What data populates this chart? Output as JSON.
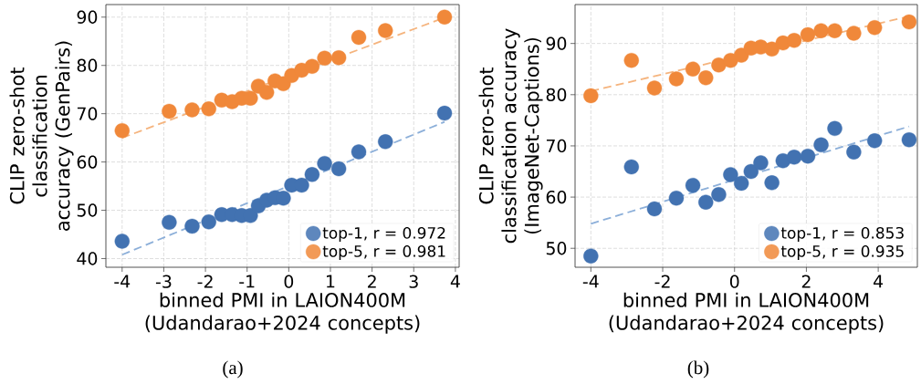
{
  "chart_data": [
    {
      "type": "scatter",
      "xlabel": "binned PMI in LAION400M (Udandarao+2024 concepts)",
      "ylabel": "CLIP zero-shot classification accuracy (GenPairs)",
      "xlim": [
        -4.39,
        4.09
      ],
      "ylim": [
        38.2,
        92.6
      ],
      "xticks": [
        -4,
        -3,
        -2,
        -1,
        0,
        1,
        2,
        3,
        4
      ],
      "yticks": [
        40,
        50,
        60,
        70,
        80,
        90
      ],
      "grid": true,
      "legend": "bottom right",
      "annotations": [
        "(a)"
      ],
      "series": [
        {
          "name": "top-1, r = 0.972",
          "marker": "circle",
          "color": "#4272b1",
          "x": [
            -4,
            -2.87,
            -2.32,
            -1.92,
            -1.61,
            -1.36,
            -1.13,
            -0.92,
            -0.73,
            -0.53,
            -0.33,
            -0.13,
            0.07,
            0.31,
            0.56,
            0.86,
            1.2,
            1.68,
            2.32,
            3.74
          ],
          "values": [
            43.6,
            47.5,
            46.7,
            47.6,
            49.1,
            49.1,
            48.9,
            48.9,
            50.9,
            52.1,
            52.6,
            52.5,
            55.2,
            55.2,
            57.4,
            59.7,
            58.6,
            62.1,
            64.2,
            70.1
          ]
        },
        {
          "name": "top-5, r = 0.981",
          "marker": "circle",
          "color": "#f0883a",
          "x": [
            -4,
            -2.87,
            -2.32,
            -1.92,
            -1.61,
            -1.36,
            -1.13,
            -0.92,
            -0.73,
            -0.53,
            -0.33,
            -0.13,
            0.07,
            0.31,
            0.56,
            0.86,
            1.2,
            1.68,
            2.32,
            3.74
          ],
          "values": [
            66.5,
            70.5,
            70.8,
            71.0,
            72.8,
            72.5,
            73.2,
            73.2,
            75.7,
            74.4,
            76.8,
            76.2,
            77.9,
            79.0,
            79.8,
            81.5,
            81.6,
            85.8,
            87.2,
            90.0
          ]
        },
        {
          "type": "line",
          "marker": "none",
          "line_style": "dashed",
          "color": "#8cafd9",
          "x": [
            -4,
            3.74
          ],
          "values": [
            40.8,
            68.3
          ]
        },
        {
          "type": "line",
          "marker": "none",
          "line_style": "dashed",
          "color": "#f5b47e",
          "x": [
            -4,
            3.74
          ],
          "values": [
            65.0,
            89.9
          ]
        }
      ]
    },
    {
      "type": "scatter",
      "xlabel": "binned PMI in LAION400M (Udandarao+2024 concepts)",
      "ylabel": "CLIP zero-shot classification accuracy (ImageNet-Captions)",
      "xlim": [
        -4.44,
        5.09
      ],
      "ylim": [
        46.3,
        97.6
      ],
      "xticks": [
        -4,
        -2,
        0,
        2,
        4
      ],
      "yticks": [
        50,
        60,
        70,
        80,
        90
      ],
      "grid": true,
      "legend": "bottom right",
      "annotations": [
        "(b)"
      ],
      "series": [
        {
          "name": "top-1, r = 0.853",
          "marker": "circle",
          "color": "#4272b1",
          "x": [
            -4,
            -2.87,
            -2.23,
            -1.62,
            -1.16,
            -0.8,
            -0.44,
            -0.11,
            0.19,
            0.46,
            0.73,
            1.04,
            1.35,
            1.66,
            2.04,
            2.41,
            2.79,
            3.32,
            3.9,
            4.86
          ],
          "values": [
            48.5,
            65.9,
            57.7,
            59.8,
            62.3,
            59.0,
            60.5,
            64.4,
            62.7,
            65.0,
            66.7,
            62.8,
            67.1,
            67.8,
            68.0,
            70.2,
            73.4,
            68.8,
            71.0,
            71.2
          ]
        },
        {
          "name": "top-5, r = 0.935",
          "marker": "circle",
          "color": "#f0883a",
          "x": [
            -4,
            -2.87,
            -2.23,
            -1.62,
            -1.16,
            -0.8,
            -0.44,
            -0.11,
            0.19,
            0.46,
            0.73,
            1.04,
            1.35,
            1.66,
            2.04,
            2.41,
            2.79,
            3.32,
            3.9,
            4.86
          ],
          "values": [
            79.8,
            86.7,
            81.3,
            83.1,
            85.0,
            83.3,
            85.8,
            86.7,
            87.7,
            89.1,
            89.3,
            88.9,
            90.1,
            90.6,
            91.7,
            92.5,
            92.5,
            92.0,
            93.1,
            94.2
          ]
        },
        {
          "type": "line",
          "marker": "none",
          "line_style": "dashed",
          "color": "#8cafd9",
          "x": [
            -4,
            4.86
          ],
          "values": [
            54.8,
            73.8
          ]
        },
        {
          "type": "line",
          "marker": "none",
          "line_style": "dashed",
          "color": "#f5b47e",
          "x": [
            -4,
            4.86
          ],
          "values": [
            80.7,
            95.3
          ]
        }
      ]
    }
  ]
}
